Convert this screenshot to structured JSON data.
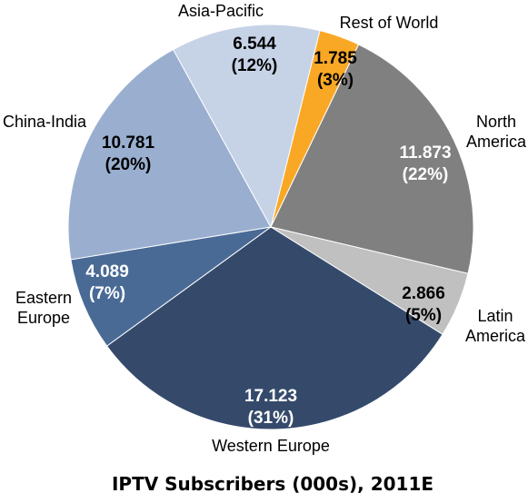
{
  "chart_data": {
    "type": "pie",
    "title": "IPTV Subscribers (000s), 2011E",
    "slices": [
      {
        "label": "Rest of World",
        "label_lines": [
          "Rest of World"
        ],
        "value": 1.785,
        "value_text": "1.785",
        "pct_text": "(3%)",
        "color": "#F9A825",
        "text_color": "#000000"
      },
      {
        "label": "North America",
        "label_lines": [
          "North",
          "America"
        ],
        "value": 11.873,
        "value_text": "11.873",
        "pct_text": "(22%)",
        "color": "#808080",
        "text_color": "#FFFFFF"
      },
      {
        "label": "Latin America",
        "label_lines": [
          "Latin",
          "America"
        ],
        "value": 2.866,
        "value_text": "2.866",
        "pct_text": "(5%)",
        "color": "#C0C0C0",
        "text_color": "#000000"
      },
      {
        "label": "Western Europe",
        "label_lines": [
          "Western Europe"
        ],
        "value": 17.123,
        "value_text": "17.123",
        "pct_text": "(31%)",
        "color": "#354A6B",
        "text_color": "#FFFFFF"
      },
      {
        "label": "Eastern Europe",
        "label_lines": [
          "Eastern",
          "Europe"
        ],
        "value": 4.089,
        "value_text": "4.089",
        "pct_text": "(7%)",
        "color": "#4A6A96",
        "text_color": "#FFFFFF"
      },
      {
        "label": "China-India",
        "label_lines": [
          "China-India"
        ],
        "value": 10.781,
        "value_text": "10.781",
        "pct_text": "(20%)",
        "color": "#9AAFCF",
        "text_color": "#000000"
      },
      {
        "label": "Asia-Pacific",
        "label_lines": [
          "Asia-Pacific"
        ],
        "value": 6.544,
        "value_text": "6.544",
        "pct_text": "(12%)",
        "color": "#C6D2E6",
        "text_color": "#000000"
      }
    ]
  }
}
